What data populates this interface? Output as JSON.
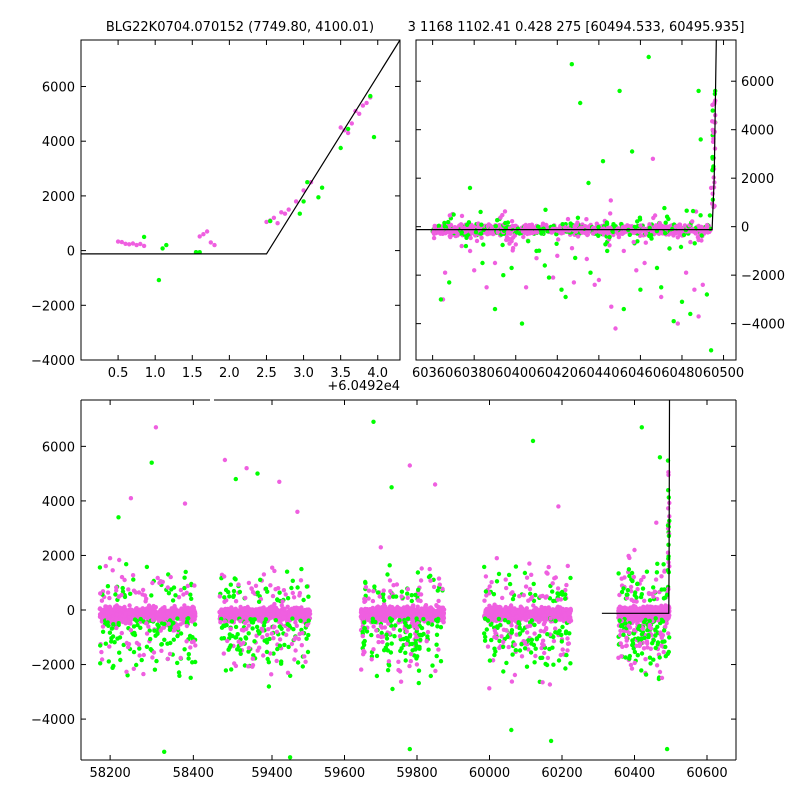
{
  "figure": {
    "title_left": "BLG22K0704.070152 (7749.80, 4100.01)",
    "title_right": "3 1168 1102.41 0.428 275 [60494.533, 60495.935]"
  },
  "colors": {
    "series_a": "#ef5fe0",
    "series_b": "#00ff00",
    "model": "#000000"
  },
  "chart_data": [
    {
      "type": "scatter",
      "panel": "zoom",
      "title": "BLG22K0704.070152 (7749.80, 4100.01)",
      "x_offset_label": "+6.0492e4",
      "xlim": [
        0.0,
        4.3
      ],
      "ylim": [
        -4000,
        7700
      ],
      "xticks": [
        0.5,
        1.0,
        1.5,
        2.0,
        2.5,
        3.0,
        3.5,
        4.0
      ],
      "xtick_labels": [
        "0.5",
        "1.0",
        "1.5",
        "2.0",
        "2.5",
        "3.0",
        "3.5",
        "4.0"
      ],
      "yticks": [
        -4000,
        -2000,
        0,
        2000,
        4000,
        6000
      ],
      "ytick_labels": [
        "−4000",
        "−2000",
        "0",
        "2000",
        "4000",
        "6000"
      ],
      "y_axis_side": "left",
      "model": {
        "x": [
          0.0,
          2.5,
          4.3
        ],
        "y": [
          -120,
          -120,
          7700
        ]
      },
      "series": [
        {
          "name": "",
          "color": "#ef5fe0",
          "x": [
            0.5,
            0.55,
            0.6,
            0.65,
            0.7,
            0.75,
            0.8,
            0.85,
            1.55,
            1.6,
            1.65,
            1.7,
            1.75,
            1.8,
            2.5,
            2.55,
            2.6,
            2.65,
            2.7,
            2.75,
            2.8,
            2.9,
            3.0,
            3.1,
            3.5,
            3.55,
            3.6,
            3.65,
            3.7,
            3.75,
            3.8,
            3.85,
            3.9
          ],
          "y": [
            330,
            310,
            250,
            230,
            260,
            200,
            240,
            170,
            -60,
            520,
            600,
            700,
            300,
            200,
            1050,
            1100,
            1200,
            1000,
            1400,
            1350,
            1500,
            1800,
            2200,
            2500,
            4500,
            4400,
            4300,
            4650,
            5100,
            5000,
            5300,
            5400,
            5600
          ]
        },
        {
          "name": "",
          "color": "#00ff00",
          "x": [
            0.85,
            1.05,
            1.1,
            1.15,
            1.55,
            1.6,
            2.55,
            2.95,
            3.0,
            3.05,
            3.2,
            3.25,
            3.5,
            3.6,
            3.9,
            3.95
          ],
          "y": [
            500,
            -1080,
            80,
            200,
            -60,
            -60,
            1080,
            1350,
            1800,
            2500,
            1950,
            2300,
            3750,
            4450,
            5650,
            4150
          ]
        }
      ]
    },
    {
      "type": "scatter",
      "panel": "recent",
      "title": "3 1168 1102.41 0.428 275 [60494.533, 60495.935]",
      "xlim": [
        60352,
        60506
      ],
      "ylim": [
        -5500,
        7700
      ],
      "xticks": [
        60360,
        60380,
        60400,
        60420,
        60440,
        60460,
        60480,
        60500
      ],
      "xtick_labels": [
        "60360",
        "60380",
        "60400",
        "60420",
        "60440",
        "60460",
        "60480",
        "60500"
      ],
      "yticks": [
        -4000,
        -2000,
        0,
        2000,
        4000,
        6000
      ],
      "ytick_labels": [
        "−4000",
        "−2000",
        "0",
        "2000",
        "4000",
        "6000"
      ],
      "y_axis_side": "right",
      "model": {
        "x": [
          60352,
          60494.5,
          60495.5,
          60496.5
        ],
        "y": [
          -120,
          -120,
          2000,
          7700
        ]
      },
      "series": [
        {
          "name": "",
          "color": "#ef5fe0",
          "x": [
            60365,
            60372,
            60380,
            60390,
            60397,
            60405,
            60420,
            60428,
            60440,
            60448,
            60462,
            60470,
            60478,
            60486,
            60490,
            60496
          ],
          "y": [
            -3000,
            -300,
            -1800,
            -1500,
            -700,
            -2500,
            -1200,
            -2300,
            -2200,
            -4200,
            -1500,
            -2900,
            -4000,
            -2600,
            -2400,
            4600
          ],
          "scatter_y": [
            -2000,
            1200
          ],
          "outliers_x": [
            60366,
            60374,
            60386,
            60398,
            60410,
            60418,
            60430,
            60438,
            60446,
            60452,
            60458,
            60466,
            60474,
            60482,
            60488,
            60494,
            60495,
            60496
          ],
          "outliers_y": [
            -1900,
            -800,
            -2500,
            -600,
            -1300,
            -2100,
            -400,
            -2400,
            -3300,
            -1000,
            -1800,
            2800,
            -900,
            -1900,
            -3700,
            1600,
            3500,
            5200
          ]
        },
        {
          "name": "",
          "color": "#00ff00",
          "x": [
            60364,
            60378,
            60390,
            60398,
            60403,
            60410,
            60416,
            60422,
            60427,
            60431,
            60435,
            60442,
            60450,
            60456,
            60464,
            60470,
            60476,
            60484,
            60489,
            60494,
            60496
          ],
          "y": [
            -3000,
            1600,
            -3400,
            -1700,
            -4000,
            -1000,
            -2100,
            -2600,
            6700,
            5100,
            1800,
            2700,
            5600,
            3100,
            7000,
            -2500,
            -3900,
            -3600,
            3600,
            -5100,
            5600
          ],
          "scatter_y": [
            -2000,
            900
          ],
          "outliers_x": [
            60368,
            60376,
            60384,
            60394,
            60406,
            60414,
            60424,
            60436,
            60444,
            60452,
            60460,
            60468,
            60474,
            60480,
            60488,
            60492,
            60495,
            60496
          ],
          "outliers_y": [
            -2300,
            -800,
            -1500,
            -2000,
            -600,
            -1600,
            -2900,
            -1900,
            -1000,
            -3400,
            -2600,
            -1700,
            -900,
            -3100,
            5600,
            -2800,
            2400,
            4300
          ]
        }
      ]
    },
    {
      "type": "scatter",
      "panel": "full",
      "xlim": [
        58130,
        60680
      ],
      "xbreak": [
        58440,
        59240
      ],
      "ylim": [
        -5500,
        7700
      ],
      "xticks": [
        58200,
        58400,
        59400,
        59600,
        59800,
        60000,
        60200,
        60400,
        60600
      ],
      "xtick_labels": [
        "58200",
        "58400",
        "59400",
        "59600",
        "59800",
        "60000",
        "60200",
        "60400",
        "60600"
      ],
      "yticks": [
        -4000,
        -2000,
        0,
        2000,
        4000,
        6000
      ],
      "ytick_labels": [
        "−4000",
        "−2000",
        "0",
        "2000",
        "4000",
        "6000"
      ],
      "y_axis_side": "left",
      "seasons": [
        [
          58175,
          58405
        ],
        [
          59255,
          59505
        ],
        [
          59645,
          59875
        ],
        [
          59985,
          60225
        ],
        [
          60355,
          60496
        ]
      ],
      "model": {
        "x": [
          60310,
          60494.5,
          60495.5,
          60496.5
        ],
        "y": [
          -120,
          -120,
          2000,
          7700
        ]
      },
      "series": [
        {
          "name": "",
          "color": "#ef5fe0",
          "outliers_x": [
            58200,
            58250,
            58310,
            58380,
            59270,
            59330,
            59420,
            59470,
            59700,
            59780,
            59850,
            60020,
            60110,
            60190,
            60400,
            60460
          ],
          "outliers_y": [
            1900,
            4100,
            6700,
            3900,
            5500,
            5200,
            4700,
            3600,
            2300,
            5300,
            4600,
            1900,
            1700,
            3800,
            2200,
            3200
          ]
        },
        {
          "name": "",
          "color": "#00ff00",
          "outliers_x": [
            58220,
            58300,
            58330,
            59300,
            59360,
            59450,
            59680,
            59730,
            59780,
            60060,
            60120,
            60170,
            60420,
            60470,
            60490
          ],
          "outliers_y": [
            3400,
            5400,
            -5200,
            4800,
            5000,
            -5400,
            6900,
            4500,
            -5100,
            -4400,
            6200,
            -4800,
            6700,
            5600,
            -5100
          ]
        }
      ]
    }
  ]
}
